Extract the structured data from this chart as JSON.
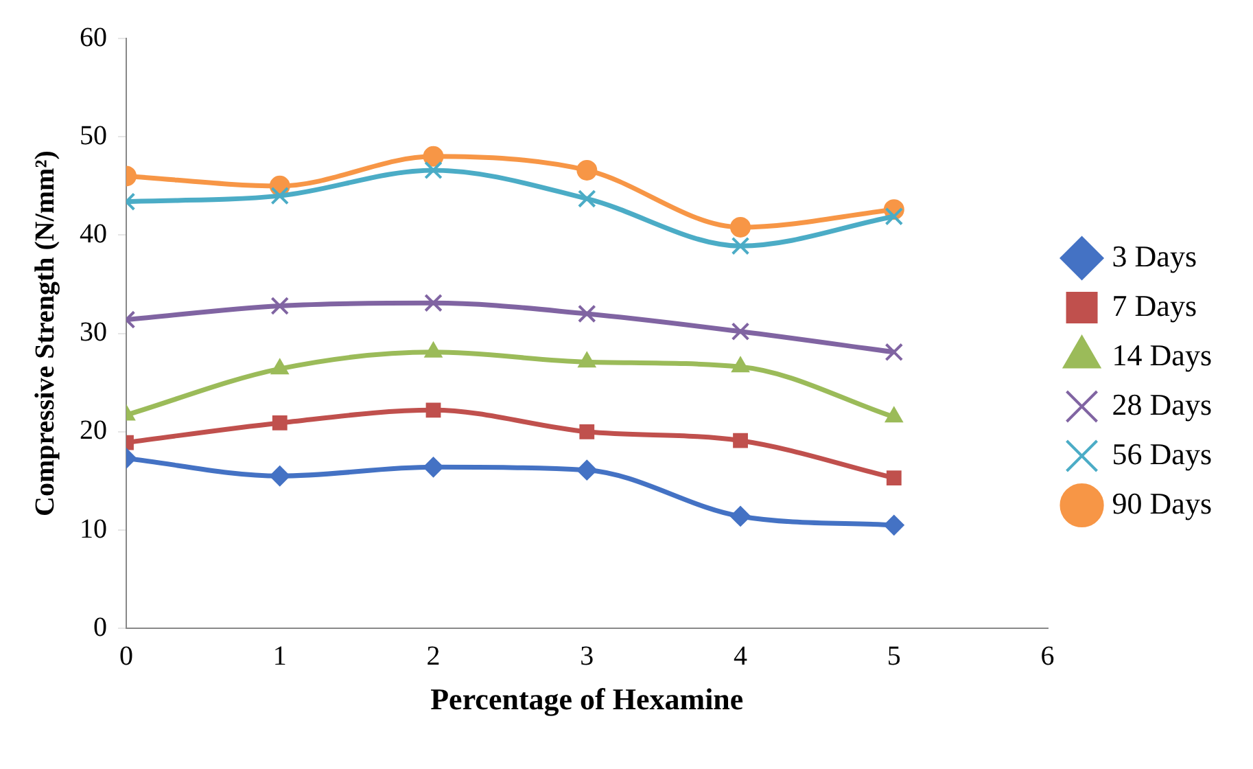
{
  "chart_data": {
    "type": "line",
    "xlabel": "Percentage of Hexamine",
    "ylabel": "Compressive Strength (N/mm²)",
    "x": [
      0,
      1,
      2,
      3,
      4,
      5
    ],
    "xlim": [
      0,
      6
    ],
    "xticks": [
      0,
      1,
      2,
      3,
      4,
      5,
      6
    ],
    "ylim": [
      0,
      60
    ],
    "yticks": [
      0,
      10,
      20,
      30,
      40,
      50,
      60
    ],
    "grid": false,
    "legend": "right",
    "series": [
      {
        "name": "3 Days",
        "color": "#4472c4",
        "marker": "diamond",
        "values": [
          17.3,
          15.5,
          16.4,
          16.1,
          11.4,
          10.5
        ]
      },
      {
        "name": "7 Days",
        "color": "#c0504d",
        "marker": "square",
        "values": [
          18.9,
          20.9,
          22.2,
          20.0,
          19.1,
          15.3
        ]
      },
      {
        "name": "14 Days",
        "color": "#9bbb59",
        "marker": "triangle",
        "values": [
          21.7,
          26.4,
          28.1,
          27.1,
          26.6,
          21.5
        ]
      },
      {
        "name": "28 Days",
        "color": "#8064a2",
        "marker": "cross",
        "values": [
          31.4,
          32.8,
          33.1,
          32.0,
          30.2,
          28.1
        ]
      },
      {
        "name": "56 Days",
        "color": "#4bacc6",
        "marker": "cross",
        "values": [
          43.4,
          44.0,
          46.6,
          43.7,
          38.9,
          41.9
        ]
      },
      {
        "name": "90 Days",
        "color": "#f79646",
        "marker": "circle",
        "values": [
          46.0,
          45.0,
          48.0,
          46.6,
          40.8,
          42.6
        ]
      }
    ]
  }
}
